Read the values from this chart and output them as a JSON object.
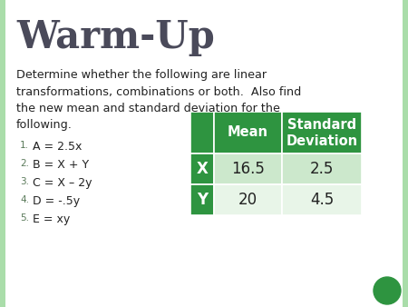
{
  "title_parts": [
    "W",
    "ARM",
    "-U",
    "P"
  ],
  "title": "Warm-Up",
  "body_text": "Determine whether the following are linear\ntransformations, combinations or both.  Also find\nthe new mean and standard deviation for the\nfollowing.",
  "list_items": [
    "A = 2.5x",
    "B = X + Y",
    "C = X – 2y",
    "D = -.5y",
    "E = xy"
  ],
  "table_rows": [
    [
      "X",
      "16.5",
      "2.5"
    ],
    [
      "Y",
      "20",
      "4.5"
    ]
  ],
  "header_bg": "#2e9440",
  "header_fg": "#ffffff",
  "row_label_bg": "#2e9440",
  "row_label_fg": "#ffffff",
  "row_bg_1": "#cce8cc",
  "row_bg_2": "#e8f5e8",
  "background_color": "#ffffff",
  "title_color": "#4a4a5a",
  "body_color": "#222222",
  "list_number_color": "#5a7a5a",
  "accent_circle_color": "#2e9440",
  "left_border_color": "#aaddaa"
}
